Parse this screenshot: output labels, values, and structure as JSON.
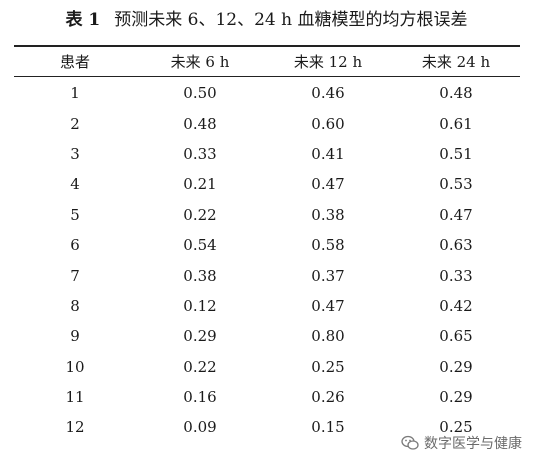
{
  "caption": {
    "label": "表 1",
    "title": "预测未来 6、12、24 h 血糖模型的均方根误差"
  },
  "table": {
    "headers": [
      "患者",
      "未来 6 h",
      "未来 12 h",
      "未来 24 h"
    ],
    "rows": [
      [
        "1",
        "0.50",
        "0.46",
        "0.48"
      ],
      [
        "2",
        "0.48",
        "0.60",
        "0.61"
      ],
      [
        "3",
        "0.33",
        "0.41",
        "0.51"
      ],
      [
        "4",
        "0.21",
        "0.47",
        "0.53"
      ],
      [
        "5",
        "0.22",
        "0.38",
        "0.47"
      ],
      [
        "6",
        "0.54",
        "0.58",
        "0.63"
      ],
      [
        "7",
        "0.38",
        "0.37",
        "0.33"
      ],
      [
        "8",
        "0.12",
        "0.47",
        "0.42"
      ],
      [
        "9",
        "0.29",
        "0.80",
        "0.65"
      ],
      [
        "10",
        "0.22",
        "0.25",
        "0.29"
      ],
      [
        "11",
        "0.16",
        "0.26",
        "0.29"
      ],
      [
        "12",
        "0.09",
        "0.15",
        "0.25"
      ]
    ]
  },
  "watermark": {
    "icon": "wechat-icon",
    "text": "数字医学与健康"
  }
}
